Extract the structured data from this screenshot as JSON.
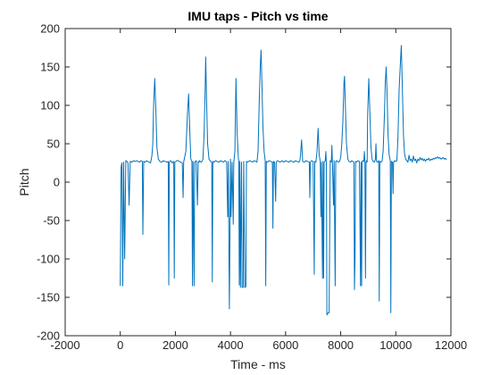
{
  "chart_data": {
    "type": "line",
    "title": "IMU taps - Pitch vs time",
    "xlabel": "Time - ms",
    "ylabel": "Pitch",
    "xlim": [
      -2000,
      12000
    ],
    "ylim": [
      -200,
      200
    ],
    "xticks": [
      -2000,
      0,
      2000,
      4000,
      6000,
      8000,
      10000,
      12000
    ],
    "yticks": [
      200,
      150,
      100,
      50,
      0,
      -50,
      -100,
      -150,
      -200
    ],
    "grid": false,
    "legend": "none",
    "color": "#0072bd",
    "series": [
      {
        "points": [
          [
            0,
            -135
          ],
          [
            30,
            20
          ],
          [
            60,
            25
          ],
          [
            90,
            -135
          ],
          [
            120,
            26
          ],
          [
            160,
            -100
          ],
          [
            200,
            28
          ],
          [
            240,
            27
          ],
          [
            280,
            25
          ],
          [
            320,
            -30
          ],
          [
            360,
            27
          ],
          [
            420,
            26
          ],
          [
            480,
            28
          ],
          [
            540,
            27
          ],
          [
            600,
            28
          ],
          [
            650,
            27
          ],
          [
            700,
            26
          ],
          [
            750,
            28
          ],
          [
            800,
            27
          ],
          [
            820,
            -68
          ],
          [
            850,
            27
          ],
          [
            900,
            26
          ],
          [
            950,
            28
          ],
          [
            1000,
            27
          ],
          [
            1050,
            26
          ],
          [
            1100,
            25
          ],
          [
            1150,
            35
          ],
          [
            1180,
            50
          ],
          [
            1210,
            100
          ],
          [
            1250,
            135
          ],
          [
            1290,
            95
          ],
          [
            1330,
            45
          ],
          [
            1380,
            30
          ],
          [
            1440,
            27
          ],
          [
            1500,
            26
          ],
          [
            1560,
            28
          ],
          [
            1600,
            27
          ],
          [
            1640,
            27
          ],
          [
            1700,
            26
          ],
          [
            1740,
            27
          ],
          [
            1760,
            -134
          ],
          [
            1780,
            26
          ],
          [
            1820,
            28
          ],
          [
            1860,
            27
          ],
          [
            1880,
            25
          ],
          [
            1920,
            26
          ],
          [
            1940,
            27
          ],
          [
            1960,
            -125
          ],
          [
            1980,
            26
          ],
          [
            2020,
            27
          ],
          [
            2050,
            28
          ],
          [
            2100,
            28
          ],
          [
            2140,
            27
          ],
          [
            2200,
            26
          ],
          [
            2250,
            25
          ],
          [
            2280,
            -20
          ],
          [
            2300,
            26
          ],
          [
            2380,
            40
          ],
          [
            2440,
            90
          ],
          [
            2480,
            115
          ],
          [
            2520,
            70
          ],
          [
            2560,
            30
          ],
          [
            2600,
            27
          ],
          [
            2620,
            -135
          ],
          [
            2640,
            27
          ],
          [
            2680,
            -135
          ],
          [
            2700,
            26
          ],
          [
            2760,
            28
          ],
          [
            2800,
            -30
          ],
          [
            2830,
            27
          ],
          [
            2860,
            26
          ],
          [
            2880,
            28
          ],
          [
            2900,
            27
          ],
          [
            2940,
            26
          ],
          [
            2980,
            28
          ],
          [
            3000,
            30
          ],
          [
            3040,
            60
          ],
          [
            3080,
            120
          ],
          [
            3100,
            163
          ],
          [
            3130,
            110
          ],
          [
            3170,
            50
          ],
          [
            3220,
            30
          ],
          [
            3280,
            27
          ],
          [
            3320,
            26
          ],
          [
            3340,
            -130
          ],
          [
            3360,
            27
          ],
          [
            3400,
            26
          ],
          [
            3460,
            28
          ],
          [
            3520,
            27
          ],
          [
            3580,
            26
          ],
          [
            3640,
            28
          ],
          [
            3700,
            27
          ],
          [
            3740,
            26
          ],
          [
            3800,
            28
          ],
          [
            3860,
            26
          ],
          [
            3900,
            -45
          ],
          [
            3920,
            27
          ],
          [
            3960,
            -165
          ],
          [
            4000,
            30
          ],
          [
            4020,
            -45
          ],
          [
            4060,
            26
          ],
          [
            4100,
            -55
          ],
          [
            4120,
            26
          ],
          [
            4160,
            40
          ],
          [
            4200,
            135
          ],
          [
            4240,
            65
          ],
          [
            4280,
            35
          ],
          [
            4300,
            26
          ],
          [
            4320,
            -134
          ],
          [
            4340,
            27
          ],
          [
            4360,
            -137
          ],
          [
            4400,
            26
          ],
          [
            4420,
            -137
          ],
          [
            4460,
            -137
          ],
          [
            4480,
            27
          ],
          [
            4520,
            -137
          ],
          [
            4540,
            -137
          ],
          [
            4560,
            -135
          ],
          [
            4580,
            27
          ],
          [
            4620,
            26
          ],
          [
            4700,
            28
          ],
          [
            4760,
            27
          ],
          [
            4800,
            26
          ],
          [
            4860,
            28
          ],
          [
            4920,
            27
          ],
          [
            4960,
            26
          ],
          [
            5000,
            40
          ],
          [
            5040,
            100
          ],
          [
            5080,
            150
          ],
          [
            5110,
            172
          ],
          [
            5140,
            130
          ],
          [
            5180,
            70
          ],
          [
            5220,
            40
          ],
          [
            5260,
            28
          ],
          [
            5280,
            -135
          ],
          [
            5300,
            27
          ],
          [
            5340,
            26
          ],
          [
            5400,
            28
          ],
          [
            5460,
            27
          ],
          [
            5520,
            26
          ],
          [
            5540,
            -60
          ],
          [
            5560,
            27
          ],
          [
            5600,
            26
          ],
          [
            5640,
            -25
          ],
          [
            5660,
            26
          ],
          [
            5700,
            28
          ],
          [
            5760,
            27
          ],
          [
            5800,
            26
          ],
          [
            5840,
            27
          ],
          [
            5880,
            28
          ],
          [
            5900,
            27
          ],
          [
            5940,
            26
          ],
          [
            6000,
            28
          ],
          [
            6060,
            27
          ],
          [
            6120,
            26
          ],
          [
            6180,
            28
          ],
          [
            6240,
            27
          ],
          [
            6300,
            26
          ],
          [
            6360,
            28
          ],
          [
            6420,
            27
          ],
          [
            6480,
            26
          ],
          [
            6520,
            28
          ],
          [
            6540,
            35
          ],
          [
            6580,
            55
          ],
          [
            6620,
            27
          ],
          [
            6680,
            26
          ],
          [
            6740,
            28
          ],
          [
            6800,
            27
          ],
          [
            6860,
            26
          ],
          [
            6880,
            -20
          ],
          [
            6900,
            26
          ],
          [
            6940,
            28
          ],
          [
            7000,
            27
          ],
          [
            7040,
            -120
          ],
          [
            7060,
            27
          ],
          [
            7100,
            26
          ],
          [
            7140,
            40
          ],
          [
            7180,
            70
          ],
          [
            7220,
            35
          ],
          [
            7260,
            27
          ],
          [
            7280,
            -45
          ],
          [
            7300,
            26
          ],
          [
            7340,
            -125
          ],
          [
            7360,
            27
          ],
          [
            7380,
            -125
          ],
          [
            7400,
            26
          ],
          [
            7440,
            28
          ],
          [
            7460,
            40
          ],
          [
            7480,
            25
          ],
          [
            7500,
            -173
          ],
          [
            7540,
            -170
          ],
          [
            7580,
            -170
          ],
          [
            7620,
            28
          ],
          [
            7660,
            26
          ],
          [
            7680,
            48
          ],
          [
            7700,
            25
          ],
          [
            7740,
            -30
          ],
          [
            7760,
            28
          ],
          [
            7800,
            -135
          ],
          [
            7820,
            27
          ],
          [
            7860,
            28
          ],
          [
            7900,
            26
          ],
          [
            7960,
            27
          ],
          [
            8000,
            32
          ],
          [
            8040,
            50
          ],
          [
            8080,
            80
          ],
          [
            8120,
            130
          ],
          [
            8140,
            138
          ],
          [
            8170,
            100
          ],
          [
            8210,
            50
          ],
          [
            8260,
            30
          ],
          [
            8300,
            27
          ],
          [
            8360,
            26
          ],
          [
            8400,
            28
          ],
          [
            8440,
            27
          ],
          [
            8480,
            26
          ],
          [
            8500,
            -140
          ],
          [
            8520,
            -100
          ],
          [
            8540,
            27
          ],
          [
            8580,
            26
          ],
          [
            8620,
            28
          ],
          [
            8680,
            27
          ],
          [
            8720,
            -135
          ],
          [
            8740,
            26
          ],
          [
            8760,
            -135
          ],
          [
            8780,
            27
          ],
          [
            8800,
            28
          ],
          [
            8840,
            27
          ],
          [
            8860,
            40
          ],
          [
            8880,
            27
          ],
          [
            8900,
            -125
          ],
          [
            8920,
            26
          ],
          [
            8940,
            28
          ],
          [
            8960,
            26
          ],
          [
            8980,
            90
          ],
          [
            9020,
            135
          ],
          [
            9060,
            90
          ],
          [
            9100,
            45
          ],
          [
            9140,
            30
          ],
          [
            9180,
            27
          ],
          [
            9220,
            26
          ],
          [
            9260,
            30
          ],
          [
            9280,
            50
          ],
          [
            9300,
            27
          ],
          [
            9340,
            26
          ],
          [
            9380,
            28
          ],
          [
            9400,
            -155
          ],
          [
            9420,
            27
          ],
          [
            9460,
            26
          ],
          [
            9500,
            27
          ],
          [
            9540,
            40
          ],
          [
            9580,
            80
          ],
          [
            9620,
            130
          ],
          [
            9650,
            150
          ],
          [
            9680,
            120
          ],
          [
            9720,
            60
          ],
          [
            9760,
            35
          ],
          [
            9800,
            28
          ],
          [
            9820,
            -170
          ],
          [
            9840,
            27
          ],
          [
            9880,
            26
          ],
          [
            9900,
            -15
          ],
          [
            9920,
            26
          ],
          [
            9960,
            28
          ],
          [
            10000,
            27
          ],
          [
            10040,
            28
          ],
          [
            10080,
            60
          ],
          [
            10120,
            120
          ],
          [
            10160,
            150
          ],
          [
            10200,
            178
          ],
          [
            10240,
            120
          ],
          [
            10280,
            60
          ],
          [
            10320,
            36
          ],
          [
            10360,
            30
          ],
          [
            10400,
            28
          ],
          [
            10440,
            26
          ],
          [
            10480,
            35
          ],
          [
            10520,
            28
          ],
          [
            10560,
            30
          ],
          [
            10600,
            26
          ],
          [
            10640,
            34
          ],
          [
            10680,
            28
          ],
          [
            10720,
            30
          ],
          [
            10760,
            25
          ],
          [
            10800,
            30
          ],
          [
            10840,
            28
          ],
          [
            10880,
            32
          ],
          [
            10920,
            29
          ],
          [
            10960,
            31
          ],
          [
            11000,
            28
          ],
          [
            11040,
            30
          ],
          [
            11080,
            27
          ],
          [
            11120,
            30
          ],
          [
            11160,
            29
          ],
          [
            11200,
            31
          ],
          [
            11240,
            28
          ],
          [
            11280,
            30
          ],
          [
            11320,
            29
          ],
          [
            11360,
            31
          ],
          [
            11400,
            30
          ],
          [
            11440,
            32
          ],
          [
            11480,
            31
          ],
          [
            11520,
            33
          ],
          [
            11560,
            31
          ],
          [
            11600,
            32
          ],
          [
            11640,
            30
          ],
          [
            11680,
            31
          ],
          [
            11720,
            32
          ],
          [
            11760,
            30
          ],
          [
            11800,
            31
          ],
          [
            11840,
            29
          ]
        ]
      }
    ]
  }
}
